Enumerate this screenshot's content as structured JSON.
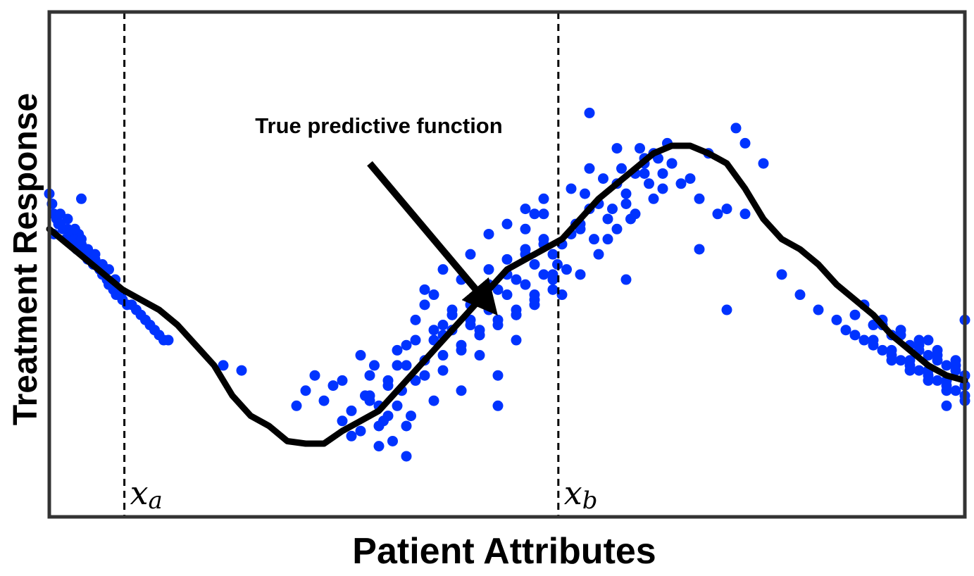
{
  "chart_data": {
    "type": "scatter",
    "xlabel": "Patient Attributes",
    "ylabel": "Treatment Response",
    "xlim": [
      0,
      1
    ],
    "ylim": [
      0,
      1
    ],
    "grid": false,
    "ticks_visible": false,
    "colors": {
      "points": "#0033ff",
      "curve": "#000000",
      "frame": "#333333"
    },
    "true_function": {
      "x": [
        0,
        0.02,
        0.04,
        0.06,
        0.08,
        0.1,
        0.12,
        0.14,
        0.16,
        0.18,
        0.2,
        0.22,
        0.24,
        0.26,
        0.28,
        0.3,
        0.32,
        0.34,
        0.36,
        0.38,
        0.4,
        0.42,
        0.44,
        0.46,
        0.48,
        0.5,
        0.52,
        0.54,
        0.56,
        0.58,
        0.6,
        0.62,
        0.64,
        0.66,
        0.68,
        0.7,
        0.72,
        0.74,
        0.76,
        0.78,
        0.8,
        0.82,
        0.84,
        0.86,
        0.88,
        0.9,
        0.92,
        0.94,
        0.96,
        0.98,
        1.0
      ],
      "y": [
        0.57,
        0.54,
        0.51,
        0.48,
        0.45,
        0.43,
        0.41,
        0.38,
        0.34,
        0.3,
        0.24,
        0.2,
        0.18,
        0.15,
        0.145,
        0.145,
        0.17,
        0.19,
        0.21,
        0.25,
        0.29,
        0.33,
        0.37,
        0.41,
        0.45,
        0.49,
        0.51,
        0.53,
        0.55,
        0.59,
        0.63,
        0.66,
        0.69,
        0.72,
        0.735,
        0.735,
        0.72,
        0.7,
        0.65,
        0.59,
        0.55,
        0.53,
        0.5,
        0.46,
        0.43,
        0.4,
        0.36,
        0.33,
        0.3,
        0.28,
        0.27
      ]
    },
    "vertical_lines": [
      {
        "x": 0.082,
        "label": "x_a",
        "base": "x",
        "sub": "a"
      },
      {
        "x": 0.556,
        "label": "x_b",
        "base": "x",
        "sub": "b"
      }
    ],
    "annotation": {
      "text": "True predictive function",
      "text_pos": [
        0.36,
        0.76
      ],
      "arrow_from": [
        0.35,
        0.7
      ],
      "arrow_to": [
        0.48,
        0.42
      ]
    },
    "points": {
      "x": [
        0.0,
        0.003,
        0.005,
        0.008,
        0.01,
        0.012,
        0.015,
        0.018,
        0.02,
        0.023,
        0.025,
        0.028,
        0.03,
        0.032,
        0.035,
        0.038,
        0.04,
        0.042,
        0.045,
        0.048,
        0.05,
        0.053,
        0.055,
        0.058,
        0.06,
        0.063,
        0.065,
        0.068,
        0.07,
        0.073,
        0.075,
        0.078,
        0.08,
        0.085,
        0.09,
        0.095,
        0.1,
        0.105,
        0.11,
        0.115,
        0.12,
        0.125,
        0.13,
        0.005,
        0.012,
        0.02,
        0.028,
        0.035,
        0.042,
        0.05,
        0.058,
        0.065,
        0.072,
        0.035,
        0.19,
        0.21,
        0.27,
        0.28,
        0.29,
        0.3,
        0.31,
        0.32,
        0.33,
        0.34,
        0.35,
        0.36,
        0.37,
        0.38,
        0.39,
        0.32,
        0.33,
        0.345,
        0.355,
        0.365,
        0.375,
        0.385,
        0.395,
        0.34,
        0.35,
        0.36,
        0.37,
        0.38,
        0.39,
        0.4,
        0.41,
        0.42,
        0.43,
        0.44,
        0.45,
        0.46,
        0.47,
        0.48,
        0.49,
        0.5,
        0.51,
        0.52,
        0.53,
        0.54,
        0.55,
        0.4,
        0.41,
        0.42,
        0.43,
        0.44,
        0.45,
        0.46,
        0.47,
        0.48,
        0.49,
        0.5,
        0.51,
        0.52,
        0.53,
        0.54,
        0.55,
        0.38,
        0.39,
        0.4,
        0.41,
        0.42,
        0.43,
        0.44,
        0.45,
        0.46,
        0.47,
        0.48,
        0.49,
        0.5,
        0.51,
        0.52,
        0.53,
        0.54,
        0.55,
        0.35,
        0.36,
        0.37,
        0.41,
        0.42,
        0.43,
        0.44,
        0.45,
        0.46,
        0.47,
        0.48,
        0.49,
        0.5,
        0.51,
        0.52,
        0.53,
        0.54,
        0.55,
        0.39,
        0.43,
        0.47,
        0.49,
        0.51,
        0.52,
        0.53,
        0.54,
        0.555,
        0.56,
        0.57,
        0.58,
        0.59,
        0.6,
        0.61,
        0.62,
        0.63,
        0.64,
        0.65,
        0.66,
        0.565,
        0.575,
        0.585,
        0.595,
        0.605,
        0.615,
        0.625,
        0.635,
        0.645,
        0.655,
        0.665,
        0.675,
        0.56,
        0.58,
        0.6,
        0.62,
        0.64,
        0.66,
        0.68,
        0.7,
        0.72,
        0.74,
        0.76,
        0.78,
        0.57,
        0.59,
        0.61,
        0.63,
        0.65,
        0.67,
        0.69,
        0.71,
        0.73,
        0.75,
        0.59,
        0.62,
        0.65,
        0.68,
        0.71,
        0.74,
        0.58,
        0.63,
        0.67,
        0.76,
        0.8,
        0.82,
        0.84,
        0.86,
        0.88,
        0.9,
        0.92,
        0.94,
        0.96,
        0.98,
        1.0,
        0.87,
        0.89,
        0.91,
        0.93,
        0.95,
        0.97,
        0.99,
        0.88,
        0.9,
        0.92,
        0.94,
        0.96,
        0.98,
        1.0,
        0.89,
        0.91,
        0.93,
        0.95,
        0.97,
        0.99,
        0.9,
        0.92,
        0.94,
        0.96,
        0.98,
        1.0,
        0.91,
        0.93,
        0.95,
        0.97,
        0.99,
        0.92,
        0.94,
        0.96,
        0.98,
        1.0,
        0.95,
        0.97,
        0.99,
        0.96,
        0.98,
        1.0
      ],
      "y": [
        0.64,
        0.62,
        0.6,
        0.59,
        0.58,
        0.6,
        0.57,
        0.55,
        0.57,
        0.56,
        0.54,
        0.55,
        0.53,
        0.56,
        0.54,
        0.52,
        0.53,
        0.51,
        0.52,
        0.5,
        0.51,
        0.5,
        0.49,
        0.48,
        0.48,
        0.47,
        0.46,
        0.46,
        0.45,
        0.44,
        0.45,
        0.44,
        0.43,
        0.42,
        0.42,
        0.41,
        0.4,
        0.39,
        0.38,
        0.37,
        0.36,
        0.35,
        0.35,
        0.56,
        0.58,
        0.59,
        0.57,
        0.55,
        0.53,
        0.52,
        0.5,
        0.49,
        0.47,
        0.63,
        0.3,
        0.29,
        0.22,
        0.25,
        0.28,
        0.23,
        0.26,
        0.19,
        0.21,
        0.17,
        0.24,
        0.14,
        0.2,
        0.22,
        0.18,
        0.27,
        0.16,
        0.24,
        0.3,
        0.19,
        0.15,
        0.25,
        0.2,
        0.32,
        0.28,
        0.22,
        0.26,
        0.3,
        0.34,
        0.27,
        0.31,
        0.35,
        0.29,
        0.37,
        0.33,
        0.39,
        0.36,
        0.41,
        0.38,
        0.44,
        0.4,
        0.46,
        0.43,
        0.48,
        0.45,
        0.39,
        0.42,
        0.44,
        0.36,
        0.41,
        0.47,
        0.38,
        0.43,
        0.49,
        0.45,
        0.51,
        0.47,
        0.53,
        0.5,
        0.55,
        0.52,
        0.33,
        0.3,
        0.35,
        0.28,
        0.37,
        0.32,
        0.4,
        0.34,
        0.42,
        0.36,
        0.46,
        0.39,
        0.48,
        0.41,
        0.52,
        0.44,
        0.54,
        0.47,
        0.23,
        0.18,
        0.27,
        0.45,
        0.23,
        0.49,
        0.4,
        0.25,
        0.52,
        0.37,
        0.56,
        0.28,
        0.58,
        0.35,
        0.61,
        0.42,
        0.6,
        0.48,
        0.12,
        0.38,
        0.32,
        0.22,
        0.4,
        0.57,
        0.6,
        0.63,
        0.5,
        0.54,
        0.56,
        0.58,
        0.61,
        0.62,
        0.59,
        0.66,
        0.64,
        0.68,
        0.7,
        0.72,
        0.49,
        0.58,
        0.64,
        0.55,
        0.67,
        0.61,
        0.69,
        0.59,
        0.73,
        0.66,
        0.71,
        0.74,
        0.44,
        0.48,
        0.52,
        0.57,
        0.6,
        0.63,
        0.7,
        0.67,
        0.72,
        0.61,
        0.74,
        0.7,
        0.65,
        0.69,
        0.55,
        0.62,
        0.71,
        0.68,
        0.66,
        0.63,
        0.6,
        0.77,
        0.8,
        0.73,
        0.68,
        0.7,
        0.53,
        0.41,
        0.57,
        0.47,
        0.65,
        0.6,
        0.48,
        0.44,
        0.41,
        0.39,
        0.36,
        0.34,
        0.32,
        0.3,
        0.28,
        0.25,
        0.23,
        0.37,
        0.35,
        0.33,
        0.31,
        0.29,
        0.27,
        0.25,
        0.4,
        0.38,
        0.36,
        0.34,
        0.32,
        0.3,
        0.28,
        0.42,
        0.39,
        0.37,
        0.35,
        0.33,
        0.31,
        0.35,
        0.33,
        0.31,
        0.29,
        0.27,
        0.26,
        0.38,
        0.36,
        0.34,
        0.32,
        0.3,
        0.31,
        0.29,
        0.27,
        0.26,
        0.24,
        0.33,
        0.31,
        0.29,
        0.35,
        0.22,
        0.39
      ]
    }
  }
}
